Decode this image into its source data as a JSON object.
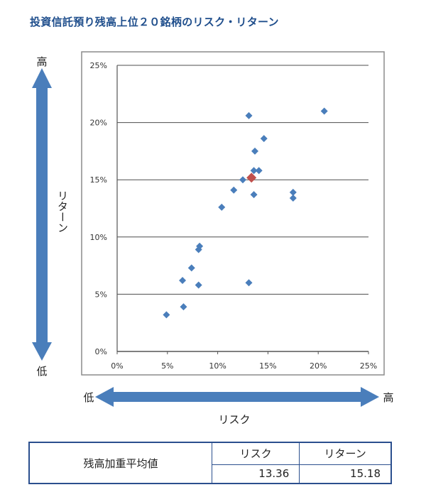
{
  "title": "投資信託預り残高上位２０銘柄のリスク・リターン",
  "arrows": {
    "y_high": "高",
    "y_low": "低",
    "y_label": "リターン",
    "x_low": "低",
    "x_high": "高",
    "x_label": "リスク"
  },
  "colors": {
    "points": "#4a7ebb",
    "highlight": "#c0504d",
    "arrow": "#4a7ebb",
    "title": "#1f4e8c"
  },
  "chart_data": {
    "type": "scatter",
    "xlim": [
      0,
      25
    ],
    "ylim": [
      0,
      25
    ],
    "xticks": [
      "0%",
      "5%",
      "10%",
      "15%",
      "20%",
      "25%"
    ],
    "yticks": [
      "0%",
      "5%",
      "10%",
      "15%",
      "20%",
      "25%"
    ],
    "grid": "horizontal",
    "series": [
      {
        "points": [
          [
            4.9,
            3.2
          ],
          [
            6.6,
            3.9
          ],
          [
            6.5,
            6.2
          ],
          [
            7.4,
            7.3
          ],
          [
            8.1,
            5.8
          ],
          [
            8.1,
            8.9
          ],
          [
            8.2,
            9.2
          ],
          [
            10.4,
            12.6
          ],
          [
            11.6,
            14.1
          ],
          [
            12.5,
            15.0
          ],
          [
            13.1,
            6.0
          ],
          [
            13.1,
            20.6
          ],
          [
            13.6,
            13.7
          ],
          [
            13.6,
            15.8
          ],
          [
            13.7,
            17.5
          ],
          [
            14.1,
            15.8
          ],
          [
            14.6,
            18.6
          ],
          [
            17.5,
            13.9
          ],
          [
            17.5,
            13.4
          ],
          [
            20.6,
            21.0
          ]
        ]
      },
      {
        "points": [
          [
            13.36,
            15.18
          ]
        ]
      }
    ]
  },
  "summary": {
    "row_label": "残高加重平均値",
    "risk_header": "リスク",
    "return_header": "リターン",
    "risk_value": "13.36",
    "return_value": "15.18"
  }
}
